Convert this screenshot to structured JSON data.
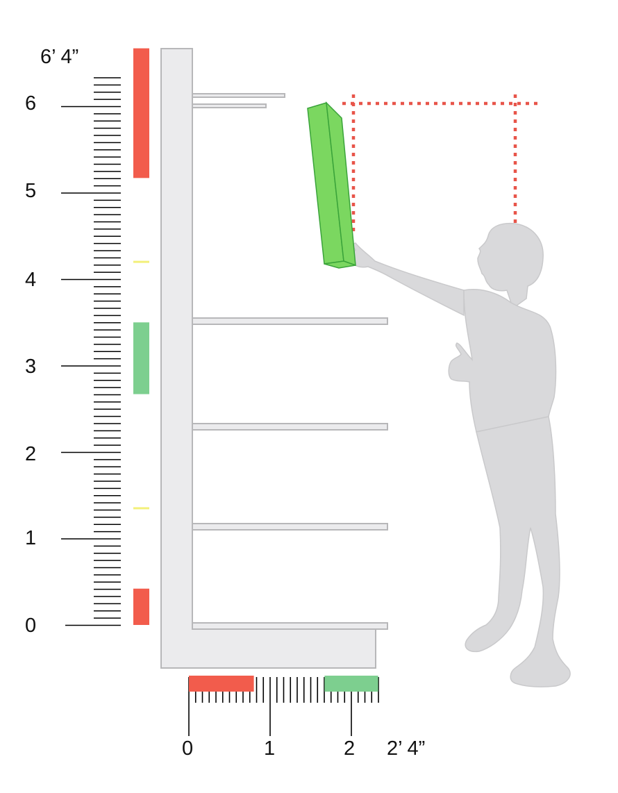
{
  "vertical_scale": {
    "labels": [
      "0",
      "1",
      "2",
      "3",
      "4",
      "5",
      "6",
      "6’ 4”"
    ],
    "max_feet": 6.333,
    "minor_ticks_per_foot": 12
  },
  "horizontal_scale": {
    "labels": [
      "0",
      "1",
      "2",
      "2’ 4”"
    ],
    "max_feet": 2.333,
    "minor_ticks_per_foot": 12
  },
  "zones": {
    "vertical": [
      {
        "name": "bottom-red",
        "from": 0,
        "to": 0.42,
        "color": "#f25c4c"
      },
      {
        "name": "middle-green",
        "from": 2.67,
        "to": 3.5,
        "color": "#7dcf8f"
      },
      {
        "name": "top-red",
        "from": 5.17,
        "to": 6.67,
        "color": "#f25c4c"
      }
    ],
    "vertical_markers": [
      {
        "name": "yellow-marker-low",
        "at": 1.35,
        "color": "#f3f07a"
      },
      {
        "name": "yellow-marker-high",
        "at": 4.2,
        "color": "#f3f07a"
      }
    ],
    "horizontal": [
      {
        "name": "near-red",
        "from": 0,
        "to": 0.8,
        "color": "#f25c4c"
      },
      {
        "name": "far-green",
        "from": 1.67,
        "to": 2.33,
        "color": "#7dcf8f"
      }
    ]
  },
  "colors": {
    "fixture": "#ebebed",
    "fixture_stroke": "#b7b7b9",
    "figure": "#d9d9db",
    "box": "#7bd760",
    "box_stroke": "#3aa33a",
    "reach_line": "#e8554a"
  }
}
